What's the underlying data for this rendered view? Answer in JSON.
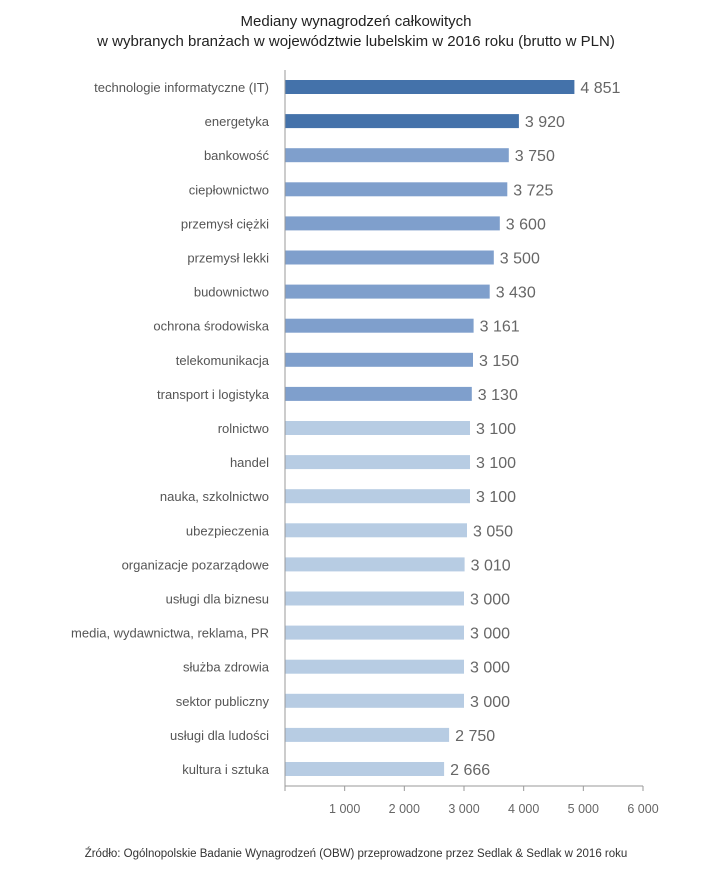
{
  "chart_data": {
    "type": "bar",
    "orientation": "horizontal",
    "title": "Mediany wynagrodzeń całkowitych",
    "subtitle": "w wybranych branżach w województwie lubelskim w 2016 roku (brutto w PLN)",
    "categories": [
      "technologie informatyczne (IT)",
      "energetyka",
      "bankowość",
      "ciepłownictwo",
      "przemysł ciężki",
      "przemysł lekki",
      "budownictwo",
      "ochrona środowiska",
      "telekomunikacja",
      "transport i logistyka",
      "rolnictwo",
      "handel",
      "nauka, szkolnictwo",
      "ubezpieczenia",
      "organizacje pozarządowe",
      "usługi dla biznesu",
      "media, wydawnictwa, reklama, PR",
      "służba zdrowia",
      "sektor publiczny",
      "usługi dla ludości",
      "kultura i sztuka"
    ],
    "values": [
      4851,
      3920,
      3750,
      3725,
      3600,
      3500,
      3430,
      3161,
      3150,
      3130,
      3100,
      3100,
      3100,
      3050,
      3010,
      3000,
      3000,
      3000,
      3000,
      2750,
      2666
    ],
    "value_labels": [
      "4 851",
      "3 920",
      "3 750",
      "3 725",
      "3 600",
      "3 500",
      "3 430",
      "3 161",
      "3 150",
      "3 130",
      "3 100",
      "3 100",
      "3 100",
      "3 050",
      "3 010",
      "3 000",
      "3 000",
      "3 000",
      "3 000",
      "2 750",
      "2 666"
    ],
    "color_groups": [
      "dark",
      "dark",
      "medium",
      "medium",
      "medium",
      "medium",
      "medium",
      "medium",
      "medium",
      "medium",
      "light",
      "light",
      "light",
      "light",
      "light",
      "light",
      "light",
      "light",
      "light",
      "light",
      "light"
    ],
    "colors": {
      "dark": "#4472aa",
      "medium": "#7f9fcc",
      "light": "#b7cce3"
    },
    "xlim": [
      0,
      6000
    ],
    "xticks": [
      1000,
      2000,
      3000,
      4000,
      5000,
      6000
    ],
    "xtick_labels": [
      "1 000",
      "2 000",
      "3 000",
      "4 000",
      "5 000",
      "6 000"
    ],
    "grid": false,
    "legend": "none",
    "source": "Źródło: Ogólnopolskie Badanie Wynagrodzeń (OBW) przeprowadzone przez Sedlak & Sedlak w 2016 roku"
  }
}
